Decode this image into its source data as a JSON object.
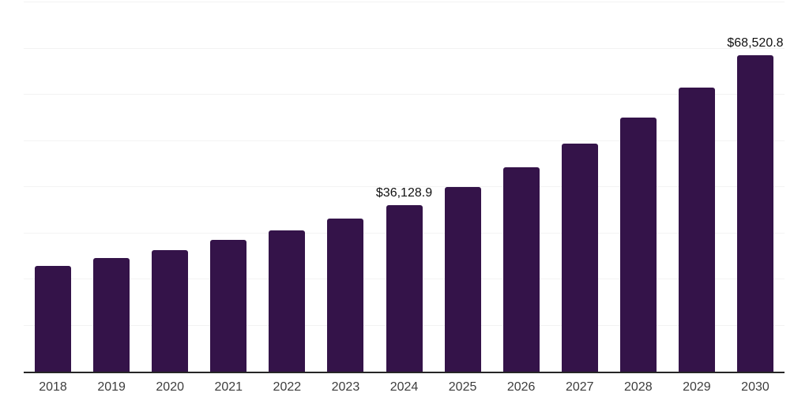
{
  "chart_data": {
    "type": "bar",
    "title": "",
    "xlabel": "",
    "ylabel": "",
    "categories": [
      "2018",
      "2019",
      "2020",
      "2021",
      "2022",
      "2023",
      "2024",
      "2025",
      "2026",
      "2027",
      "2028",
      "2029",
      "2030"
    ],
    "values": [
      22950,
      24600,
      26250,
      28500,
      30600,
      33200,
      36128.9,
      40000,
      44300,
      49400,
      55000,
      61500,
      68520.8
    ],
    "point_labels": [
      "",
      "",
      "",
      "",
      "",
      "",
      "$36,128.9",
      "",
      "",
      "",
      "",
      "",
      "$68,520.8"
    ],
    "ylim": [
      0,
      80000
    ],
    "gridline_step": 10000,
    "y_tick_labels_visible": false,
    "legend": "none",
    "grid": "horizontal",
    "colors": {
      "bar": "#341349",
      "axis": "#262626",
      "gridline": "#f3f3f3",
      "tick_label": "#3d3d3d",
      "data_label": "#111111",
      "background": "#ffffff"
    }
  }
}
